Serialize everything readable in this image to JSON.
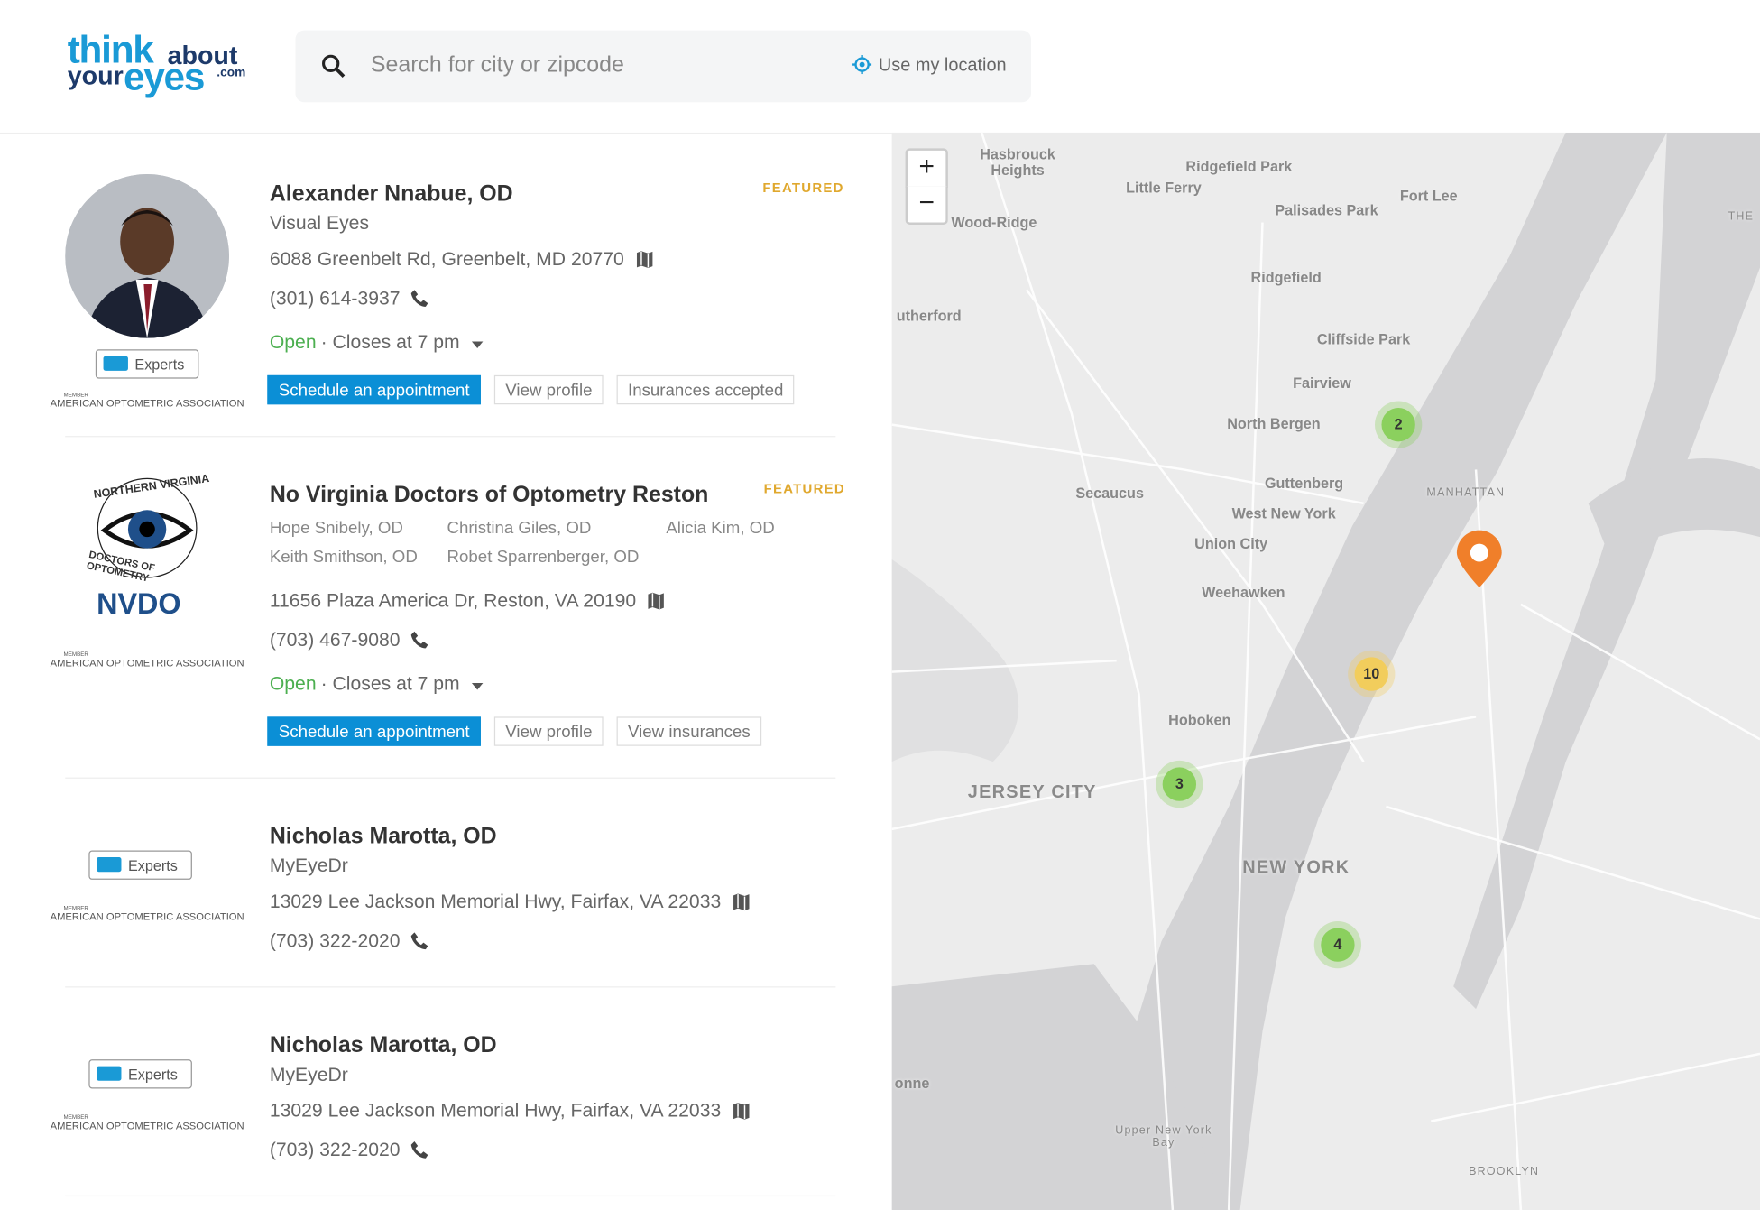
{
  "header": {
    "logo": {
      "think": "think",
      "about": "about",
      "your": "your",
      "eyes": "eyes",
      "com": ".com"
    },
    "search_placeholder": "Search for city or zipcode",
    "location_button": "Use my location"
  },
  "listings": [
    {
      "name": "Alexander Nnabue, OD",
      "featured": "FEATURED",
      "practice": "Visual Eyes",
      "address": "6088 Greenbelt Rd, Greenbelt, MD 20770",
      "phone": "(301) 614-3937",
      "status": "Open",
      "hours": "· Closes at 7 pm",
      "actions": [
        "Schedule an appointment",
        "View profile",
        "Insurances accepted"
      ],
      "badge": "Experts",
      "association_member": "MEMBER",
      "association": "AMERICAN OPTOMETRIC ASSOCIATION"
    },
    {
      "name": "No Virginia Doctors of Optometry Reston",
      "featured": "FEATURED",
      "doctors": [
        "Hope Snibely, OD",
        "Christina Giles, OD",
        "Alicia Kim, OD",
        "Keith Smithson, OD",
        "Robet Sparrenberger, OD"
      ],
      "address": "11656 Plaza America Dr, Reston, VA 20190",
      "phone": "(703) 467-9080",
      "status": "Open",
      "hours": "· Closes at 7 pm",
      "actions": [
        "Schedule an appointment",
        "View profile",
        "View insurances"
      ],
      "logo": {
        "top": "NORTHERN VIRGINIA",
        "bottom": "DOCTORS OF OPTOMETRY",
        "acronym": "NVDO"
      },
      "association_member": "MEMBER",
      "association": "AMERICAN OPTOMETRIC ASSOCIATION"
    },
    {
      "name": "Nicholas Marotta, OD",
      "practice": "MyEyeDr",
      "address": "13029 Lee Jackson Memorial Hwy, Fairfax, VA 22033",
      "phone": "(703) 322-2020",
      "badge": "Experts",
      "association_member": "MEMBER",
      "association": "AMERICAN OPTOMETRIC ASSOCIATION"
    },
    {
      "name": "Nicholas Marotta, OD",
      "practice": "MyEyeDr",
      "address": "13029 Lee Jackson Memorial Hwy, Fairfax, VA 22033",
      "phone": "(703) 322-2020",
      "badge": "Experts",
      "association_member": "MEMBER",
      "association": "AMERICAN OPTOMETRIC ASSOCIATION"
    }
  ],
  "map": {
    "zoom_in": "+",
    "zoom_out": "−",
    "labels": [
      "Hasbrouck Heights",
      "Ridgefield Park",
      "Little Ferry",
      "Fort Lee",
      "Palisades Park",
      "Wood-Ridge",
      "THE",
      "Ridgefield",
      "utherford",
      "Cliffside Park",
      "Fairview",
      "North Bergen",
      "Secaucus",
      "Guttenberg",
      "MANHATTAN",
      "West New York",
      "Union City",
      "Weehawken",
      "Hoboken",
      "JERSEY CITY",
      "NEW YORK",
      "onne",
      "Upper New York Bay",
      "BROOKLYN"
    ],
    "clusters": [
      "2",
      "10",
      "3",
      "4"
    ]
  }
}
